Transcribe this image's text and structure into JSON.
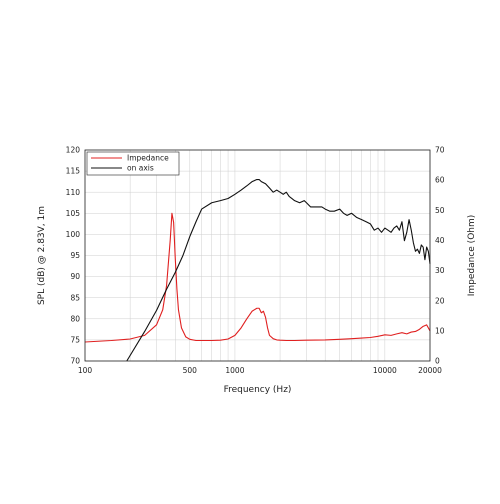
{
  "chart_data": {
    "type": "line",
    "xlabel": "Frequency (Hz)",
    "ylabel_left": "SPL (dB) @ 2.83V, 1m",
    "ylabel_right": "Impedance (Ohm)",
    "x_scale": "log",
    "xlim": [
      100,
      20000
    ],
    "ylim_left": [
      70,
      120
    ],
    "ylim_right": [
      0,
      70
    ],
    "x_ticks": [
      100,
      500,
      1000,
      10000,
      20000
    ],
    "x_tick_labels": [
      "100",
      "500",
      "1000",
      "10000",
      "20000"
    ],
    "y_ticks_left": [
      70,
      75,
      80,
      85,
      90,
      95,
      100,
      105,
      110,
      115,
      120
    ],
    "y_ticks_right": [
      0,
      10,
      20,
      30,
      40,
      50,
      60,
      70
    ],
    "grid": true,
    "legend": "top-left",
    "series": [
      {
        "name": "Impedance",
        "color": "#e02020",
        "axis": "right",
        "x": [
          100,
          150,
          200,
          250,
          300,
          330,
          350,
          370,
          380,
          390,
          400,
          410,
          420,
          440,
          470,
          500,
          550,
          600,
          700,
          800,
          900,
          1000,
          1100,
          1200,
          1300,
          1400,
          1450,
          1500,
          1550,
          1600,
          1650,
          1700,
          1800,
          1900,
          2000,
          2200,
          2500,
          3000,
          4000,
          5000,
          6000,
          7000,
          8000,
          9000,
          10000,
          11000,
          12000,
          13000,
          14000,
          15000,
          16000,
          17000,
          18000,
          19000,
          20000
        ],
        "values": [
          6.3,
          6.8,
          7.3,
          8.5,
          12.0,
          17.0,
          25.0,
          40.0,
          49.0,
          46.0,
          34.0,
          24.0,
          17.0,
          11.0,
          8.0,
          7.2,
          6.8,
          6.8,
          6.8,
          6.9,
          7.3,
          8.5,
          11.0,
          14.0,
          16.5,
          17.5,
          17.5,
          16.0,
          16.5,
          14.5,
          11.0,
          8.5,
          7.4,
          7.0,
          6.9,
          6.8,
          6.8,
          6.9,
          7.0,
          7.2,
          7.4,
          7.6,
          7.8,
          8.2,
          8.7,
          8.5,
          9.0,
          9.4,
          9.0,
          9.6,
          9.8,
          10.5,
          11.5,
          12.0,
          10.0
        ]
      },
      {
        "name": "on axis",
        "color": "#111111",
        "axis": "left",
        "x": [
          190,
          250,
          300,
          350,
          400,
          450,
          500,
          550,
          600,
          700,
          800,
          900,
          1000,
          1100,
          1200,
          1300,
          1400,
          1450,
          1500,
          1600,
          1700,
          1800,
          1900,
          2000,
          2100,
          2200,
          2300,
          2400,
          2500,
          2700,
          2900,
          3000,
          3200,
          3500,
          3800,
          4000,
          4300,
          4600,
          5000,
          5300,
          5600,
          6000,
          6500,
          7000,
          7500,
          8000,
          8500,
          9000,
          9500,
          10000,
          10500,
          11000,
          11500,
          12000,
          12500,
          13000,
          13500,
          14000,
          14500,
          15000,
          15500,
          16000,
          16500,
          17000,
          17500,
          18000,
          18500,
          19000,
          19500,
          20000
        ],
        "values": [
          70.0,
          77.0,
          82.0,
          87.0,
          91.0,
          95.0,
          99.5,
          103.0,
          106.0,
          107.5,
          108.0,
          108.5,
          109.5,
          110.5,
          111.5,
          112.5,
          113.0,
          113.0,
          112.5,
          112.0,
          111.0,
          110.0,
          110.5,
          110.0,
          109.5,
          110.0,
          109.0,
          108.5,
          108.0,
          107.5,
          108.0,
          107.5,
          106.5,
          106.5,
          106.5,
          106.0,
          105.5,
          105.5,
          106.0,
          105.0,
          104.5,
          105.0,
          104.0,
          103.5,
          103.0,
          102.5,
          101.0,
          101.5,
          100.5,
          101.5,
          101.0,
          100.5,
          101.5,
          102.0,
          101.0,
          103.0,
          98.5,
          100.5,
          103.5,
          101.0,
          98.0,
          96.0,
          96.5,
          95.5,
          97.5,
          97.0,
          94.0,
          97.0,
          96.0,
          93.0
        ]
      }
    ]
  }
}
